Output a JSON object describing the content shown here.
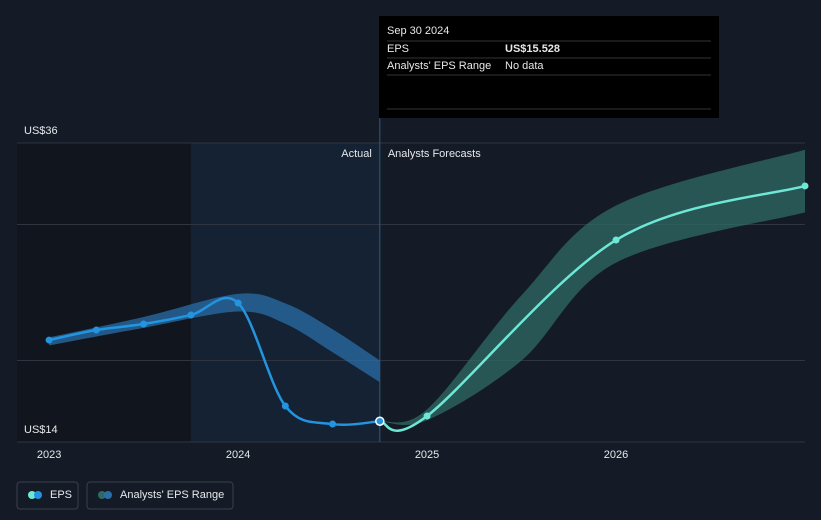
{
  "chart_data": {
    "type": "line",
    "xlim": [
      2022.83,
      2027
    ],
    "xticks": [
      2023,
      2024,
      2025,
      2026
    ],
    "ylim": [
      14,
      36
    ],
    "yticks": [
      {
        "value": 14,
        "label": "US$14"
      },
      {
        "value": 36,
        "label": "US$36"
      }
    ],
    "ygrid": [
      20,
      30
    ],
    "divider_x": 2024.75,
    "shaded_xrange": [
      2023.75,
      2024.75
    ],
    "annotations": [
      "Actual",
      "Analysts Forecasts"
    ],
    "series": [
      {
        "name": "EPS",
        "color": "#2394df",
        "forecast_color": "#6ee8d6",
        "x": [
          2023.0,
          2023.25,
          2023.5,
          2023.75,
          2024.0,
          2024.25,
          2024.5,
          2024.75,
          2025.0,
          2026.0,
          2027.0
        ],
        "values": [
          21.5,
          22.24,
          22.68,
          23.34,
          24.23,
          16.65,
          15.32,
          15.528,
          15.91,
          28.86,
          32.84
        ]
      }
    ],
    "range": {
      "name": "Analysts' EPS Range",
      "bands": [
        {
          "color": "#2a6ea8",
          "x": [
            2023.0,
            2023.5,
            2024.0,
            2024.25,
            2024.5,
            2024.75
          ],
          "high": [
            21.7,
            23.2,
            24.9,
            24.2,
            22.3,
            20.0
          ],
          "low": [
            21.1,
            22.4,
            23.6,
            22.7,
            20.6,
            18.4
          ]
        },
        {
          "color": "#2f6b66",
          "x": [
            2024.75,
            2025.0,
            2025.5,
            2026.0,
            2027.0
          ],
          "high": [
            15.528,
            16.4,
            24.8,
            31.4,
            35.5
          ],
          "low": [
            15.528,
            15.6,
            20.0,
            27.2,
            30.9
          ]
        }
      ]
    },
    "tooltip": {
      "date": "Sep 30 2024",
      "rows": [
        {
          "label": "EPS",
          "value": "US$15.528"
        },
        {
          "label": "Analysts' EPS Range",
          "value": "No data"
        }
      ]
    }
  }
}
